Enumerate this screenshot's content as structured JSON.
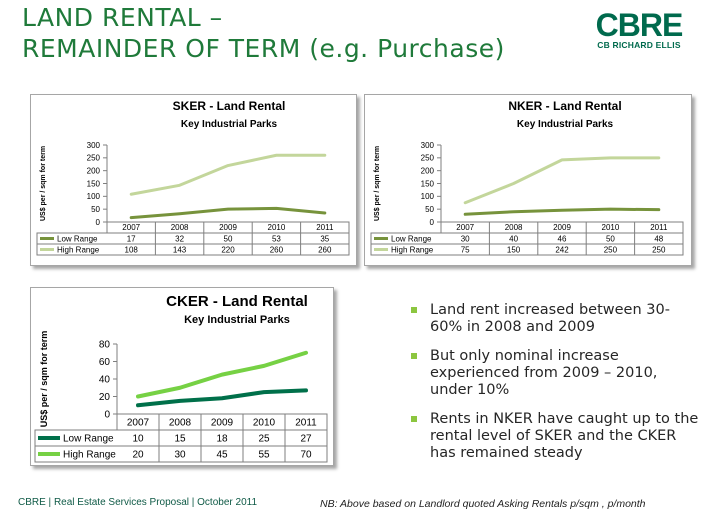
{
  "slide": {
    "title_line1": "LAND RENTAL –",
    "title_line2": "REMAINDER OF TERM (e.g. Purchase)",
    "logo_main": "CBRE",
    "logo_sub": "CB RICHARD ELLIS",
    "footer_left": "CBRE | Real Estate Services Proposal | October 2011",
    "footer_right": "NB: Above based on Landlord quoted Asking Rentals p/sqm , p/month"
  },
  "bullets": [
    "Land rent increased between 30-60% in 2008 and 2009",
    "But only nominal increase experienced from 2009 – 2010, under 10%",
    "Rents in NKER have caught up to the rental level of SKER and the CKER has remained steady"
  ],
  "colors": {
    "title": "#1f7a3a",
    "logo": "#006a4d",
    "bullet": "#8cc63f",
    "low_sker": "#77933c",
    "high_sker": "#c3d69b",
    "low_cker": "#00704a",
    "high_cker": "#76d144"
  },
  "chart_data": [
    {
      "id": "sker",
      "type": "line",
      "title": "SKER - Land Rental",
      "subtitle": "Key Industrial Parks",
      "ylabel": "US$ per / sqm for term",
      "xlabel": "",
      "ylim": [
        0,
        300
      ],
      "yticks": [
        0,
        50,
        100,
        150,
        200,
        250,
        300
      ],
      "grid": false,
      "legend": "table",
      "categories": [
        "2007",
        "2008",
        "2009",
        "2010",
        "2011"
      ],
      "series": [
        {
          "name": "Low Range",
          "color": "#77933c",
          "values": [
            17,
            32,
            50,
            53,
            35
          ]
        },
        {
          "name": "High Range",
          "color": "#c3d69b",
          "values": [
            108,
            143,
            220,
            260,
            260
          ]
        }
      ]
    },
    {
      "id": "nker",
      "type": "line",
      "title": "NKER - Land Rental",
      "subtitle": "Key Industrial Parks",
      "ylabel": "US$ per / sqm for term",
      "xlabel": "",
      "ylim": [
        0,
        300
      ],
      "yticks": [
        0,
        50,
        100,
        150,
        200,
        250,
        300
      ],
      "grid": false,
      "legend": "table",
      "categories": [
        "2007",
        "2008",
        "2009",
        "2010",
        "2011"
      ],
      "series": [
        {
          "name": "Low Range",
          "color": "#77933c",
          "values": [
            30,
            40,
            46,
            50,
            48
          ]
        },
        {
          "name": "High Range",
          "color": "#c3d69b",
          "values": [
            75,
            150,
            242,
            250,
            250
          ]
        }
      ]
    },
    {
      "id": "cker",
      "type": "line",
      "title": "CKER - Land Rental",
      "subtitle": "Key Industrial Parks",
      "ylabel": "US$ per / sqm for term",
      "xlabel": "",
      "ylim": [
        0,
        80
      ],
      "yticks": [
        0,
        20,
        40,
        60,
        80
      ],
      "grid": false,
      "legend": "table",
      "categories": [
        "2007",
        "2008",
        "2009",
        "2010",
        "2011"
      ],
      "series": [
        {
          "name": "Low Range",
          "color": "#00704a",
          "values": [
            10,
            15,
            18,
            25,
            27
          ]
        },
        {
          "name": "High Range",
          "color": "#76d144",
          "values": [
            20,
            30,
            45,
            55,
            70
          ]
        }
      ]
    }
  ]
}
